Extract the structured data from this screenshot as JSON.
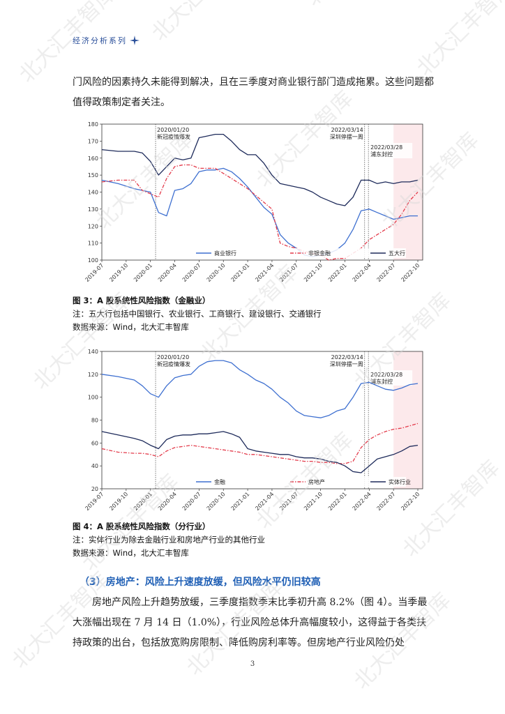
{
  "header": {
    "title": "经济分析系列"
  },
  "para_top": "门风险的因素持久未能得到解决，且在三季度对商业银行部门造成拖累。这些问题都值得政策制定者关注。",
  "chart_data": [
    {
      "type": "line",
      "title": "",
      "xlabel": "",
      "ylabel": "",
      "ylim": [
        100,
        180
      ],
      "yticks": [
        "100",
        "110",
        "120",
        "130",
        "140",
        "150",
        "160",
        "170",
        "180"
      ],
      "xticks": [
        "2019-07",
        "2019-10",
        "2020-01",
        "2020-04",
        "2020-07",
        "2020-10",
        "2021-01",
        "2021-04",
        "2021-07",
        "2021-10",
        "2022-01",
        "2022-04",
        "2022-07",
        "2022-10"
      ],
      "legend_position": "bottom",
      "annotations": [
        {
          "date": "2020-01-20",
          "line1": "2020/01/20",
          "line2": "新冠疫情爆发"
        },
        {
          "date": "2022-03-14",
          "line1": "2022/03/14",
          "line2": "深圳停摆一周"
        },
        {
          "date": "2022-03-28",
          "line1": "2022/03/28",
          "line2": "浦东封控"
        }
      ],
      "shade_from": "2022-07",
      "series": [
        {
          "name": "商业银行",
          "color": "#3d6fd0",
          "dash": "solid",
          "points": [
            [
              "2019-07",
              147
            ],
            [
              "2019-09",
              145
            ],
            [
              "2019-11",
              142
            ],
            [
              "2019-12",
              141
            ],
            [
              "2020-01",
              140
            ],
            [
              "2020-02",
              128
            ],
            [
              "2020-03",
              126
            ],
            [
              "2020-04",
              141
            ],
            [
              "2020-05",
              142
            ],
            [
              "2020-06",
              145
            ],
            [
              "2020-07",
              152
            ],
            [
              "2020-08",
              153
            ],
            [
              "2020-09",
              153
            ],
            [
              "2020-10",
              154
            ],
            [
              "2020-11",
              152
            ],
            [
              "2020-12",
              148
            ],
            [
              "2021-01",
              143
            ],
            [
              "2021-02",
              137
            ],
            [
              "2021-03",
              131
            ],
            [
              "2021-04",
              127
            ],
            [
              "2021-05",
              115
            ],
            [
              "2021-06",
              110
            ],
            [
              "2021-07",
              107
            ],
            [
              "2021-08",
              103
            ],
            [
              "2021-09",
              102
            ],
            [
              "2021-10",
              103
            ],
            [
              "2021-11",
              104
            ],
            [
              "2021-12",
              106
            ],
            [
              "2022-01",
              110
            ],
            [
              "2022-02",
              118
            ],
            [
              "2022-03",
              129
            ],
            [
              "2022-04",
              130
            ],
            [
              "2022-05",
              128
            ],
            [
              "2022-06",
              126
            ],
            [
              "2022-07",
              124
            ],
            [
              "2022-08",
              125
            ],
            [
              "2022-09",
              126
            ],
            [
              "2022-10",
              126
            ]
          ]
        },
        {
          "name": "非银金融",
          "color": "#e33a4a",
          "dash": "dashdot",
          "points": [
            [
              "2019-07",
              146
            ],
            [
              "2019-09",
              147
            ],
            [
              "2019-11",
              147
            ],
            [
              "2019-12",
              141
            ],
            [
              "2020-01",
              139
            ],
            [
              "2020-02",
              137
            ],
            [
              "2020-03",
              148
            ],
            [
              "2020-04",
              155
            ],
            [
              "2020-05",
              156
            ],
            [
              "2020-06",
              156
            ],
            [
              "2020-07",
              154
            ],
            [
              "2020-08",
              154
            ],
            [
              "2020-09",
              154
            ],
            [
              "2020-10",
              151
            ],
            [
              "2020-11",
              148
            ],
            [
              "2020-12",
              145
            ],
            [
              "2021-01",
              142
            ],
            [
              "2021-02",
              138
            ],
            [
              "2021-03",
              134
            ],
            [
              "2021-04",
              130
            ],
            [
              "2021-05",
              110
            ],
            [
              "2021-06",
              108
            ],
            [
              "2021-07",
              107
            ],
            [
              "2021-08",
              105
            ],
            [
              "2021-09",
              104
            ],
            [
              "2021-10",
              103
            ],
            [
              "2021-11",
              100
            ],
            [
              "2021-12",
              101
            ],
            [
              "2022-01",
              101
            ],
            [
              "2022-02",
              104
            ],
            [
              "2022-03",
              107
            ],
            [
              "2022-04",
              112
            ],
            [
              "2022-05",
              115
            ],
            [
              "2022-06",
              118
            ],
            [
              "2022-07",
              121
            ],
            [
              "2022-08",
              127
            ],
            [
              "2022-09",
              135
            ],
            [
              "2022-10",
              140
            ]
          ]
        },
        {
          "name": "五大行",
          "color": "#1d2a5a",
          "dash": "solid",
          "points": [
            [
              "2019-07",
              165
            ],
            [
              "2019-09",
              164
            ],
            [
              "2019-11",
              164
            ],
            [
              "2019-12",
              163
            ],
            [
              "2020-01",
              158
            ],
            [
              "2020-02",
              150
            ],
            [
              "2020-03",
              155
            ],
            [
              "2020-04",
              160
            ],
            [
              "2020-05",
              159
            ],
            [
              "2020-06",
              160
            ],
            [
              "2020-07",
              172
            ],
            [
              "2020-08",
              173
            ],
            [
              "2020-09",
              174
            ],
            [
              "2020-10",
              174
            ],
            [
              "2020-11",
              170
            ],
            [
              "2020-12",
              165
            ],
            [
              "2021-01",
              162
            ],
            [
              "2021-02",
              162
            ],
            [
              "2021-03",
              157
            ],
            [
              "2021-04",
              150
            ],
            [
              "2021-05",
              145
            ],
            [
              "2021-06",
              144
            ],
            [
              "2021-07",
              143
            ],
            [
              "2021-08",
              142
            ],
            [
              "2021-09",
              140
            ],
            [
              "2021-10",
              137
            ],
            [
              "2021-11",
              135
            ],
            [
              "2021-12",
              133
            ],
            [
              "2022-01",
              132
            ],
            [
              "2022-02",
              137
            ],
            [
              "2022-03",
              147
            ],
            [
              "2022-04",
              147
            ],
            [
              "2022-05",
              145
            ],
            [
              "2022-06",
              146
            ],
            [
              "2022-07",
              145
            ],
            [
              "2022-08",
              146
            ],
            [
              "2022-09",
              146
            ],
            [
              "2022-10",
              147
            ]
          ]
        }
      ]
    },
    {
      "type": "line",
      "title": "",
      "xlabel": "",
      "ylabel": "",
      "ylim": [
        20,
        140
      ],
      "yticks": [
        "20",
        "40",
        "60",
        "80",
        "100",
        "120",
        "140"
      ],
      "xticks": [
        "2019-07",
        "2019-10",
        "2020-01",
        "2020-04",
        "2020-07",
        "2020-10",
        "2021-01",
        "2021-04",
        "2021-07",
        "2021-10",
        "2022-01",
        "2022-04",
        "2022-07",
        "2022-10"
      ],
      "legend_position": "bottom",
      "annotations": [
        {
          "date": "2020-01-20",
          "line1": "2020/01/20",
          "line2": "新冠疫情爆发"
        },
        {
          "date": "2022-03-14",
          "line1": "2022/03/14",
          "line2": "深圳停摆一周"
        },
        {
          "date": "2022-03-28",
          "line1": "2022/03/28",
          "line2": "浦东封控"
        }
      ],
      "shade_from": "2022-07",
      "series": [
        {
          "name": "金融",
          "color": "#3d6fd0",
          "dash": "solid",
          "points": [
            [
              "2019-07",
              120
            ],
            [
              "2019-09",
              118
            ],
            [
              "2019-11",
              115
            ],
            [
              "2019-12",
              110
            ],
            [
              "2020-01",
              103
            ],
            [
              "2020-02",
              100
            ],
            [
              "2020-03",
              110
            ],
            [
              "2020-04",
              117
            ],
            [
              "2020-05",
              119
            ],
            [
              "2020-06",
              120
            ],
            [
              "2020-07",
              127
            ],
            [
              "2020-08",
              131
            ],
            [
              "2020-09",
              132
            ],
            [
              "2020-10",
              132
            ],
            [
              "2020-11",
              130
            ],
            [
              "2020-12",
              124
            ],
            [
              "2021-01",
              120
            ],
            [
              "2021-02",
              115
            ],
            [
              "2021-03",
              112
            ],
            [
              "2021-04",
              107
            ],
            [
              "2021-05",
              100
            ],
            [
              "2021-06",
              95
            ],
            [
              "2021-07",
              88
            ],
            [
              "2021-08",
              84
            ],
            [
              "2021-09",
              83
            ],
            [
              "2021-10",
              82
            ],
            [
              "2021-11",
              84
            ],
            [
              "2021-12",
              88
            ],
            [
              "2022-01",
              90
            ],
            [
              "2022-02",
              100
            ],
            [
              "2022-03",
              112
            ],
            [
              "2022-04",
              113
            ],
            [
              "2022-05",
              110
            ],
            [
              "2022-06",
              107
            ],
            [
              "2022-07",
              106
            ],
            [
              "2022-08",
              108
            ],
            [
              "2022-09",
              111
            ],
            [
              "2022-10",
              112
            ]
          ]
        },
        {
          "name": "房地产",
          "color": "#e33a4a",
          "dash": "dashdot",
          "points": [
            [
              "2019-07",
              55
            ],
            [
              "2019-09",
              52
            ],
            [
              "2019-11",
              51
            ],
            [
              "2019-12",
              51
            ],
            [
              "2020-01",
              50
            ],
            [
              "2020-02",
              48
            ],
            [
              "2020-03",
              53
            ],
            [
              "2020-04",
              56
            ],
            [
              "2020-05",
              57
            ],
            [
              "2020-06",
              58
            ],
            [
              "2020-07",
              57
            ],
            [
              "2020-08",
              56
            ],
            [
              "2020-09",
              55
            ],
            [
              "2020-10",
              54
            ],
            [
              "2020-11",
              53
            ],
            [
              "2020-12",
              52
            ],
            [
              "2021-01",
              50
            ],
            [
              "2021-02",
              50
            ],
            [
              "2021-03",
              49
            ],
            [
              "2021-04",
              48
            ],
            [
              "2021-05",
              47
            ],
            [
              "2021-06",
              46
            ],
            [
              "2021-07",
              45
            ],
            [
              "2021-08",
              44
            ],
            [
              "2021-09",
              44
            ],
            [
              "2021-10",
              43
            ],
            [
              "2021-11",
              43
            ],
            [
              "2021-12",
              42
            ],
            [
              "2022-01",
              42
            ],
            [
              "2022-02",
              44
            ],
            [
              "2022-03",
              56
            ],
            [
              "2022-04",
              63
            ],
            [
              "2022-05",
              67
            ],
            [
              "2022-06",
              70
            ],
            [
              "2022-07",
              72
            ],
            [
              "2022-08",
              73
            ],
            [
              "2022-09",
              75
            ],
            [
              "2022-10",
              77
            ]
          ]
        },
        {
          "name": "实体行业",
          "color": "#1d2a5a",
          "dash": "solid",
          "points": [
            [
              "2019-07",
              70
            ],
            [
              "2019-09",
              67
            ],
            [
              "2019-11",
              64
            ],
            [
              "2019-12",
              62
            ],
            [
              "2020-01",
              58
            ],
            [
              "2020-02",
              55
            ],
            [
              "2020-03",
              63
            ],
            [
              "2020-04",
              66
            ],
            [
              "2020-05",
              67
            ],
            [
              "2020-06",
              67
            ],
            [
              "2020-07",
              68
            ],
            [
              "2020-08",
              68
            ],
            [
              "2020-09",
              69
            ],
            [
              "2020-10",
              70
            ],
            [
              "2020-11",
              68
            ],
            [
              "2020-12",
              65
            ],
            [
              "2021-01",
              55
            ],
            [
              "2021-02",
              53
            ],
            [
              "2021-03",
              52
            ],
            [
              "2021-04",
              51
            ],
            [
              "2021-05",
              50
            ],
            [
              "2021-06",
              50
            ],
            [
              "2021-07",
              48
            ],
            [
              "2021-08",
              47
            ],
            [
              "2021-09",
              47
            ],
            [
              "2021-10",
              46
            ],
            [
              "2021-11",
              44
            ],
            [
              "2021-12",
              43
            ],
            [
              "2022-01",
              40
            ],
            [
              "2022-02",
              35
            ],
            [
              "2022-03",
              34
            ],
            [
              "2022-04",
              40
            ],
            [
              "2022-05",
              46
            ],
            [
              "2022-06",
              48
            ],
            [
              "2022-07",
              50
            ],
            [
              "2022-08",
              53
            ],
            [
              "2022-09",
              57
            ],
            [
              "2022-10",
              58
            ]
          ]
        }
      ]
    }
  ],
  "fig3": {
    "title": "图 3：A 股系统性风险指数（金融业）",
    "note": "注：五大行包括中国银行、农业银行、工商银行、建设银行、交通银行",
    "source": "数据来源：Wind，北大汇丰智库"
  },
  "fig4": {
    "title": "图 4：A 股系统性风险指数（分行业）",
    "note": "注：实体行业为除去金融行业和房地产行业的其他行业",
    "source": "数据来源：Wind，北大汇丰智库"
  },
  "section_title": "（3）房地产：风险上升速度放缓，但风险水平仍旧较高",
  "para_bottom": "房地产风险上升趋势放缓，三季度指数季末比季初升高 8.2%（图 4）。当季最大涨幅出现在 7 月 14 日（1.0%），行业风险总体升高幅度较小，这得益于各类扶持政策的出台，包括放宽购房限制、降低购房利率等。但房地产行业风险仍处",
  "page_number": "3",
  "watermark": "北大汇丰智库"
}
